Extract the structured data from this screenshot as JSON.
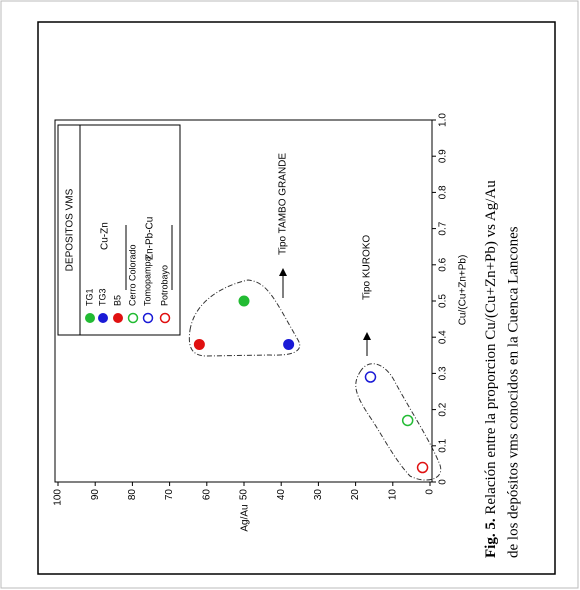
{
  "chart_data": {
    "type": "scatter",
    "xlabel": "Cu/(Cu+Zn+Pb)",
    "ylabel": "Ag/Au",
    "xlim": [
      0,
      1
    ],
    "ylim": [
      0,
      100
    ],
    "xticks": [
      0,
      0.1,
      0.2,
      0.3,
      0.4,
      0.5,
      0.6,
      0.7,
      0.8,
      0.9,
      {
        "value": 1,
        "label": "1.0"
      }
    ],
    "yticks": [
      0,
      10,
      20,
      30,
      40,
      50,
      60,
      70,
      80,
      90,
      100
    ],
    "legend_title": "DEPOSITOS VMS",
    "legend_groups": [
      "Cu-Zn",
      "Zn-Pb-Cu"
    ],
    "series": [
      {
        "name": "TG1",
        "color": "#22bb33",
        "filled": true,
        "x": [
          0.5
        ],
        "values": [
          50
        ]
      },
      {
        "name": "TG3",
        "color": "#1a1ad6",
        "filled": true,
        "x": [
          0.38
        ],
        "values": [
          38
        ]
      },
      {
        "name": "B5",
        "color": "#e01010",
        "filled": true,
        "x": [
          0.38
        ],
        "values": [
          62
        ]
      },
      {
        "name": "Cerro Colorado",
        "color": "#22bb33",
        "filled": false,
        "x": [
          0.17
        ],
        "values": [
          6
        ]
      },
      {
        "name": "Tomopampa",
        "color": "#1a1ad6",
        "filled": false,
        "x": [
          0.29
        ],
        "values": [
          16
        ]
      },
      {
        "name": "Potrobayo",
        "color": "#e01010",
        "filled": false,
        "x": [
          0.04
        ],
        "values": [
          2
        ]
      }
    ],
    "annotations": [
      "Tipo TAMBO GRANDE",
      "Tipo KUROKO"
    ],
    "caption": {
      "label": "Fig. 5.",
      "line1": " Relación entre la proporcion Cu/(Cu+Zn+Pb) vs Ag/Au",
      "line2": "de los depósitos vms conocidos en la Cuenca Lancones"
    }
  }
}
